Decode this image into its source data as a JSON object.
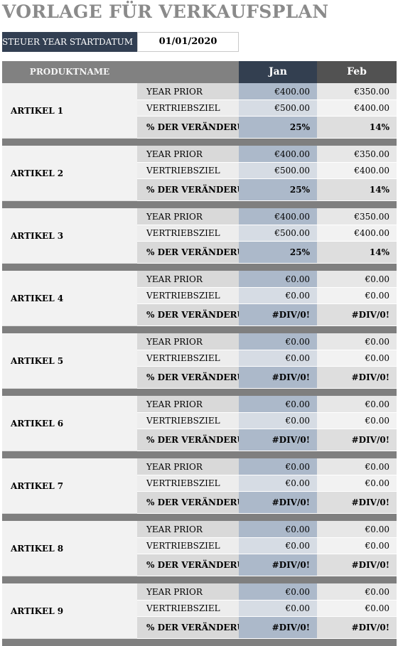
{
  "title": "VORLAGE FÜR VERKAUFSPLAN",
  "fiscal_year": {
    "label": "STEUER YEAR STARTDATUM",
    "value": "01/01/2020"
  },
  "header": {
    "product_name": "PRODUKTNAME",
    "months": [
      "Jan",
      "Feb"
    ]
  },
  "row_labels": {
    "prior": "YEAR PRIOR",
    "goal": "VERTRIEBSZIEL",
    "change": "% DER VERÄNDERUNG"
  },
  "products": [
    {
      "name": "ARTIKEL 1",
      "prior": [
        "€400.00",
        "€350.00"
      ],
      "goal": [
        "€500.00",
        "€400.00"
      ],
      "change": [
        "25%",
        "14%"
      ]
    },
    {
      "name": "ARTIKEL 2",
      "prior": [
        "€400.00",
        "€350.00"
      ],
      "goal": [
        "€500.00",
        "€400.00"
      ],
      "change": [
        "25%",
        "14%"
      ]
    },
    {
      "name": "ARTIKEL 3",
      "prior": [
        "€400.00",
        "€350.00"
      ],
      "goal": [
        "€500.00",
        "€400.00"
      ],
      "change": [
        "25%",
        "14%"
      ]
    },
    {
      "name": "ARTIKEL 4",
      "prior": [
        "€0.00",
        "€0.00"
      ],
      "goal": [
        "€0.00",
        "€0.00"
      ],
      "change": [
        "#DIV/0!",
        "#DIV/0!"
      ]
    },
    {
      "name": "ARTIKEL 5",
      "prior": [
        "€0.00",
        "€0.00"
      ],
      "goal": [
        "€0.00",
        "€0.00"
      ],
      "change": [
        "#DIV/0!",
        "#DIV/0!"
      ]
    },
    {
      "name": "ARTIKEL 6",
      "prior": [
        "€0.00",
        "€0.00"
      ],
      "goal": [
        "€0.00",
        "€0.00"
      ],
      "change": [
        "#DIV/0!",
        "#DIV/0!"
      ]
    },
    {
      "name": "ARTIKEL 7",
      "prior": [
        "€0.00",
        "€0.00"
      ],
      "goal": [
        "€0.00",
        "€0.00"
      ],
      "change": [
        "#DIV/0!",
        "#DIV/0!"
      ]
    },
    {
      "name": "ARTIKEL 8",
      "prior": [
        "€0.00",
        "€0.00"
      ],
      "goal": [
        "€0.00",
        "€0.00"
      ],
      "change": [
        "#DIV/0!",
        "#DIV/0!"
      ]
    },
    {
      "name": "ARTIKEL 9",
      "prior": [
        "€0.00",
        "€0.00"
      ],
      "goal": [
        "€0.00",
        "€0.00"
      ],
      "change": [
        "#DIV/0!",
        "#DIV/0!"
      ]
    }
  ]
}
